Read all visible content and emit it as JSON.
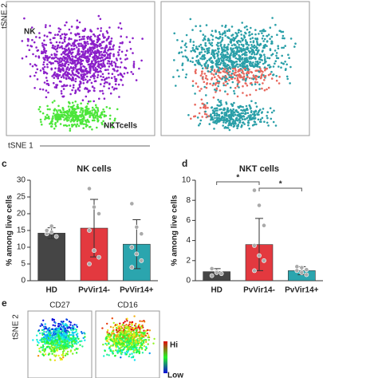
{
  "chart_data": [
    {
      "type": "tsne",
      "y_label": "tSNE 2",
      "x_label": "tSNE 1",
      "annotations": [
        "NK",
        "NKTcells"
      ],
      "colors": [
        "#8b1fc9",
        "#4ce63a"
      ]
    },
    {
      "type": "tsne",
      "colors": [
        "#2a9fa8",
        "#e8685e"
      ]
    },
    {
      "type": "bar",
      "panel": "c",
      "title": "NK cells",
      "y_label": "% among live cells",
      "categories": [
        "HD",
        "PvVir14-",
        "PvVir14+"
      ],
      "values": [
        14.2,
        15.7,
        10.9
      ],
      "errors": [
        1.6,
        8.6,
        7.3
      ],
      "points": [
        [
          14,
          14.5,
          13.2,
          15,
          16.3
        ],
        [
          27.5,
          22,
          20,
          15,
          9,
          7,
          5
        ],
        [
          23,
          16,
          14,
          10,
          8,
          6,
          4
        ]
      ],
      "colors": [
        "#454545",
        "#e3393f",
        "#2ba5ae"
      ],
      "ylim": [
        0,
        30
      ],
      "yticks": [
        0,
        5,
        10,
        15,
        20,
        25,
        30
      ]
    },
    {
      "type": "bar",
      "panel": "d",
      "title": "NKT cells",
      "y_label": "% among live cells",
      "categories": [
        "HD",
        "PvVir14-",
        "PvVir14+"
      ],
      "values": [
        0.9,
        3.6,
        1.0
      ],
      "errors": [
        0.3,
        2.6,
        0.4
      ],
      "points": [
        [
          1.2,
          0.9,
          0.7,
          0.5,
          0.8
        ],
        [
          9,
          7.5,
          5.5,
          3.5,
          2.5,
          2,
          1
        ],
        [
          1.4,
          1.3,
          1.1,
          1,
          0.8,
          0.6
        ]
      ],
      "colors": [
        "#454545",
        "#e3393f",
        "#2ba5ae"
      ],
      "ylim": [
        0,
        10
      ],
      "yticks": [
        0,
        2,
        4,
        6,
        8,
        10
      ],
      "significance": [
        "*",
        "*"
      ]
    },
    {
      "type": "heatmap-tsne",
      "panel": "e",
      "y_label": "tSNE 2",
      "titles": [
        "CD27",
        "CD16"
      ],
      "scale_labels": [
        "Hi",
        "Low"
      ]
    }
  ]
}
